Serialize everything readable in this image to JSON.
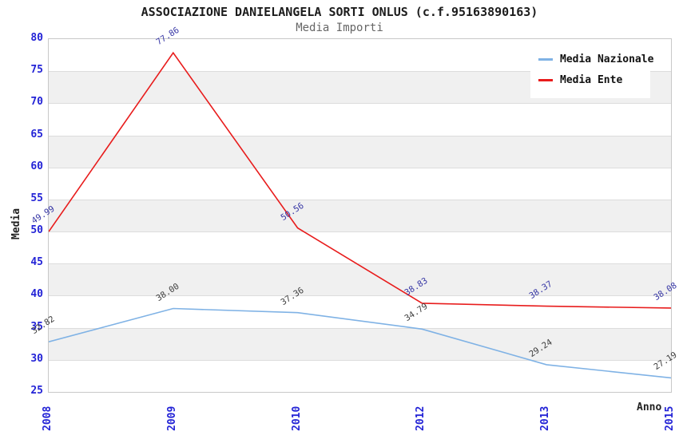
{
  "chart_data": {
    "type": "line",
    "title": "ASSOCIAZIONE DANIELANGELA SORTI ONLUS (c.f.95163890163)",
    "subtitle": "Media Importi",
    "categories": [
      "2008",
      "2009",
      "2010",
      "2012",
      "2013",
      "2015"
    ],
    "series": [
      {
        "name": "Media Nazionale",
        "color": "#7fb2e5",
        "label_color": "#3d3d3d",
        "values": [
          32.82,
          38.0,
          37.36,
          34.79,
          29.24,
          27.19
        ],
        "value_labels": [
          "32.82",
          "38.00",
          "37.36",
          "34.79",
          "29.24",
          "27.19"
        ]
      },
      {
        "name": "Media Ente",
        "color": "#e81c1c",
        "label_color": "#3434a4",
        "values": [
          49.99,
          77.86,
          50.56,
          38.83,
          38.37,
          38.08
        ],
        "value_labels": [
          "49.99",
          "77.86",
          "50.56",
          "38.83",
          "38.37",
          "38.08"
        ]
      }
    ],
    "xlabel": "Anno",
    "ylabel": "Media",
    "ylim": [
      25,
      80
    ],
    "ytick_step": 5,
    "yticks": [
      80,
      75,
      70,
      65,
      60,
      55,
      50,
      45,
      40,
      35,
      30,
      25
    ],
    "legend_position": "top-right",
    "grid": "alternating-horizontal-bands",
    "colors": {
      "tick_label": "#2323d6",
      "band": "#f0f0f0",
      "grid_line": "#dcdcdc",
      "plot_border": "#c8c8c8",
      "title": "#1c1c1c",
      "subtitle": "#666666"
    }
  }
}
